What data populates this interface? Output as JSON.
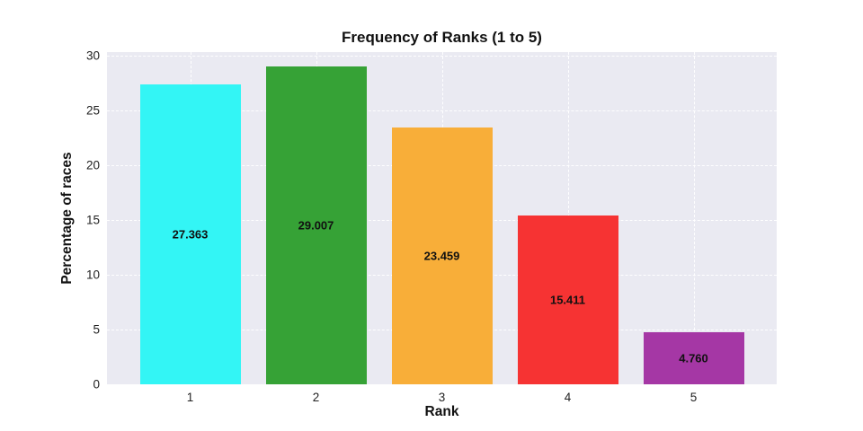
{
  "chart_data": {
    "type": "bar",
    "title": "Frequency of Ranks (1 to 5)",
    "xlabel": "Rank",
    "ylabel": "Percentage of races",
    "categories": [
      "1",
      "2",
      "3",
      "4",
      "5"
    ],
    "values": [
      27.363,
      29.007,
      23.459,
      15.411,
      4.76
    ],
    "bar_labels": [
      "27.363",
      "29.007",
      "23.459",
      "15.411",
      "4.760"
    ],
    "bar_colors": [
      "#33f5f5",
      "#36a236",
      "#f8ae39",
      "#f63333",
      "#a537a5"
    ],
    "value_label_position": "center-of-bar",
    "yticks": [
      0,
      5,
      10,
      15,
      20,
      25,
      30
    ],
    "ylim": [
      0,
      30.33
    ],
    "grid": true,
    "grid_style": "dashed-white",
    "legend": "none",
    "plot_bg_color": "#eaeaf2",
    "page_bg_color": "#ffffff",
    "text_color": "#111111"
  }
}
